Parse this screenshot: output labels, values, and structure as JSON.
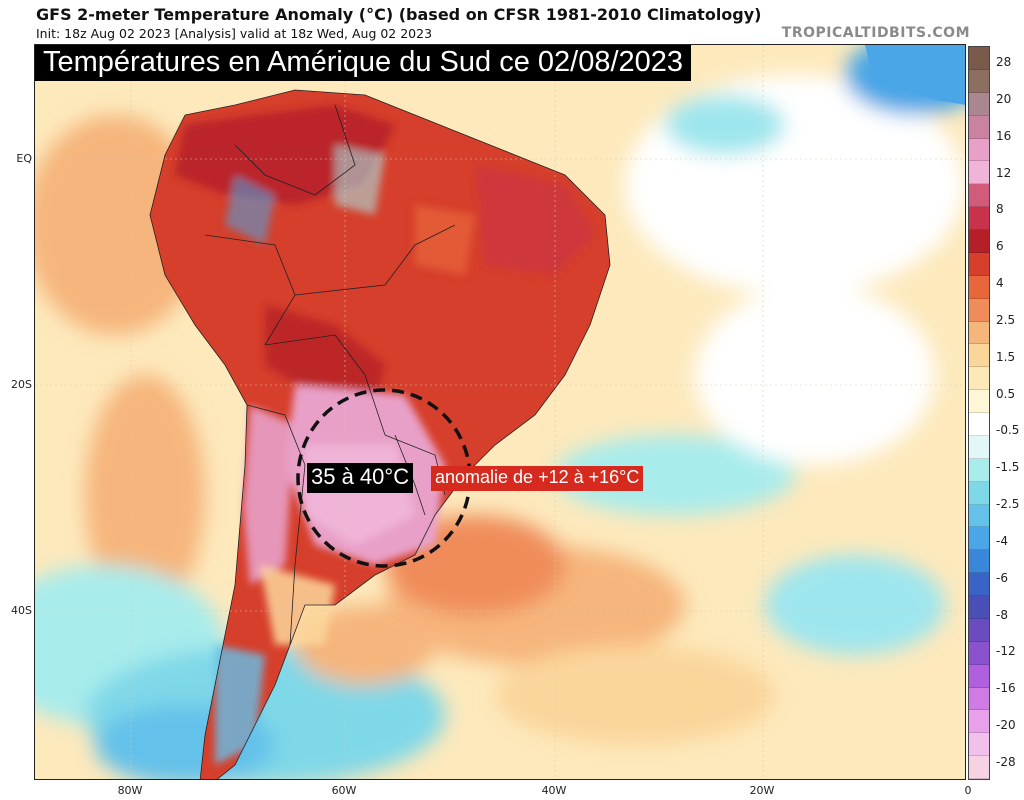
{
  "header": {
    "title": "GFS 2-meter Temperature Anomaly (°C) (based on CFSR 1981-2010 Climatology)",
    "subtitle": "Init: 18z Aug 02 2023   [Analysis]   valid at 18z Wed, Aug 02 2023",
    "site": "TROPICALTIDBITS.COM"
  },
  "overlay": {
    "banner": "Températures en Amérique du Sud ce 02/08/2023",
    "temp_label": "35 à 40°C",
    "anomaly_label": "anomalie de +12 à +16°C"
  },
  "map": {
    "lat_ticks": [
      "EQ",
      "20S",
      "40S"
    ],
    "lon_ticks": [
      "80W",
      "60W",
      "40W",
      "20W",
      "0"
    ]
  },
  "colorbar": {
    "labels": [
      "28",
      "20",
      "16",
      "12",
      "8",
      "6",
      "4",
      "2.5",
      "1.5",
      "0.5",
      "-0.5",
      "-1.5",
      "-2.5",
      "-4",
      "-6",
      "-8",
      "-12",
      "-16",
      "-20",
      "-28"
    ],
    "colors": [
      "#7a5a4a",
      "#8d6f62",
      "#a98690",
      "#c9829f",
      "#e8a0c8",
      "#f0b4d8",
      "#d25a7a",
      "#c8324a",
      "#b51f28",
      "#d63f2b",
      "#e8673a",
      "#f08c5a",
      "#f6b57b",
      "#fbd69b",
      "#fde9b8",
      "#fff6d8",
      "#ffffff",
      "#e2f8f8",
      "#a8ecec",
      "#7fd8e8",
      "#64c1ea",
      "#4aa6e6",
      "#3a86d8",
      "#3a63c6",
      "#4a4fb8",
      "#6a4cc0",
      "#8a52cf",
      "#b060dc",
      "#d07ae6",
      "#e8a0ea",
      "#f2c0ec",
      "#f6d2e2"
    ]
  }
}
